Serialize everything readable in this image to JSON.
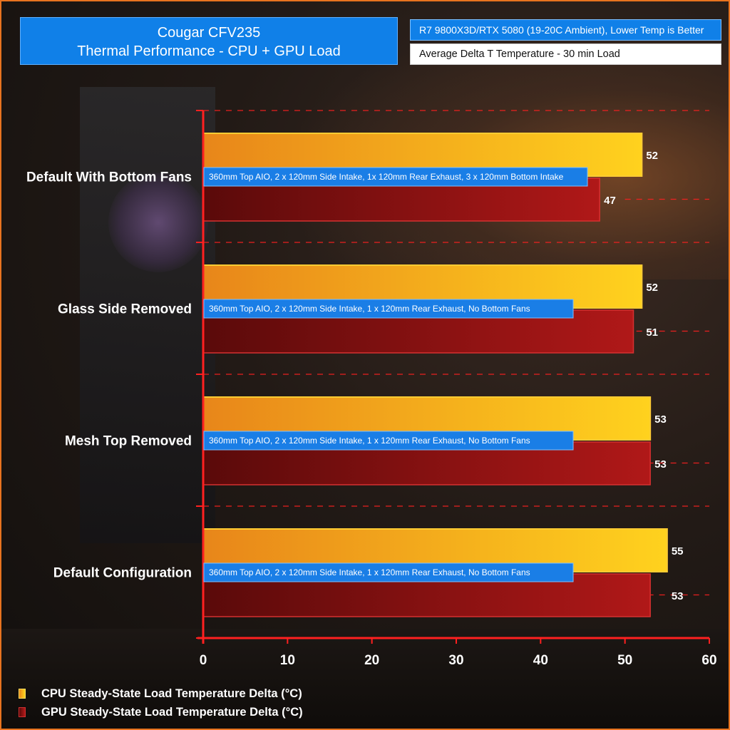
{
  "header": {
    "conditions": "R7 9800X3D/RTX 5080 (19-20C Ambient), Lower Temp is Better",
    "metric": "Average Delta T Temperature - 30 min Load"
  },
  "colors": {
    "title_box": "#1080e8",
    "axis": "#ff2020",
    "cpu_start": "#e8861a",
    "cpu_end": "#ffd21e",
    "gpu_start": "#5a0a0a",
    "gpu_end": "#b01818",
    "note_box": "#1a7ee6"
  },
  "chart_data": {
    "type": "bar",
    "orientation": "horizontal",
    "title": "Cougar CFV235",
    "subtitle": "Thermal Performance - CPU + GPU Load",
    "categories": [
      "Default With Bottom Fans",
      "Glass Side Removed",
      "Mesh Top Removed",
      "Default Configuration"
    ],
    "notes": [
      "360mm Top AIO, 2 x 120mm Side Intake, 1x 120mm  Rear Exhaust, 3 x 120mm Bottom Intake",
      "360mm Top AIO, 2 x 120mm Side Intake, 1 x 120mm Rear Exhaust, No Bottom Fans",
      "360mm Top AIO, 2 x 120mm Side Intake, 1 x 120mm Rear Exhaust, No Bottom Fans",
      "360mm Top AIO, 2 x 120mm Side Intake, 1 x 120mm Rear Exhaust, No Bottom Fans"
    ],
    "series": [
      {
        "name": "CPU Steady-State Load Temperature Delta (°C)",
        "values": [
          52,
          52,
          53,
          55
        ]
      },
      {
        "name": "GPU Steady-State Load Temperature Delta (°C)",
        "values": [
          47,
          51,
          53,
          53
        ]
      }
    ],
    "xlim": [
      0,
      60
    ],
    "xticks": [
      "0",
      "10",
      "20",
      "30",
      "40",
      "50",
      "60"
    ],
    "grid": true,
    "legend": "bottom-left"
  }
}
